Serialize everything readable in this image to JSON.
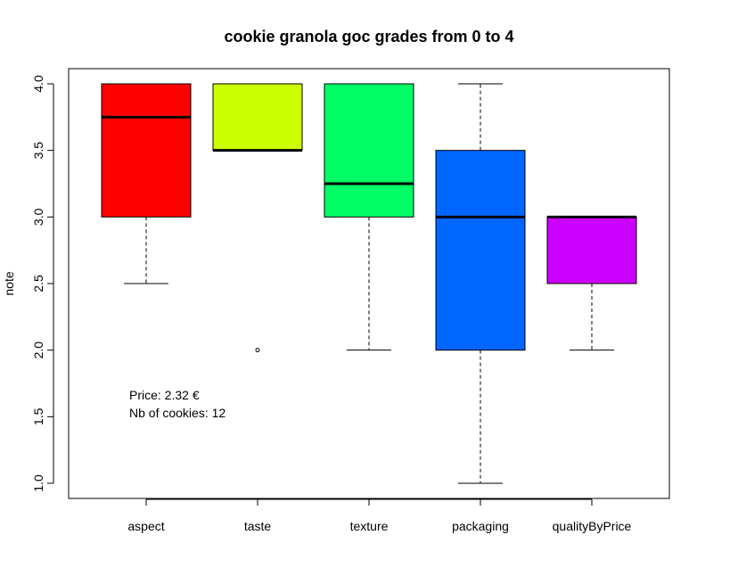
{
  "chart_data": {
    "type": "boxplot",
    "title": "cookie granola goc grades from 0 to 4",
    "xlabel": "",
    "ylabel": "note",
    "ylim": [
      1.0,
      4.0
    ],
    "y_ticks": [
      "1.0",
      "1.5",
      "2.0",
      "2.5",
      "3.0",
      "3.5",
      "4.0"
    ],
    "categories": [
      "aspect",
      "taste",
      "texture",
      "packaging",
      "qualityByPrice"
    ],
    "colors": [
      "#FF0000",
      "#CCFF00",
      "#00FF66",
      "#0066FF",
      "#CC00FF"
    ],
    "boxes": [
      {
        "name": "aspect",
        "whisker_low": 2.5,
        "q1": 3.0,
        "median": 3.75,
        "q3": 4.0,
        "whisker_high": 4.0,
        "outliers": []
      },
      {
        "name": "taste",
        "whisker_low": 3.5,
        "q1": 3.5,
        "median": 3.5,
        "q3": 4.0,
        "whisker_high": 4.0,
        "outliers": [
          2.0
        ]
      },
      {
        "name": "texture",
        "whisker_low": 2.0,
        "q1": 3.0,
        "median": 3.25,
        "q3": 4.0,
        "whisker_high": 4.0,
        "outliers": []
      },
      {
        "name": "packaging",
        "whisker_low": 1.0,
        "q1": 2.0,
        "median": 3.0,
        "q3": 3.5,
        "whisker_high": 4.0,
        "outliers": []
      },
      {
        "name": "qualityByPrice",
        "whisker_low": 2.0,
        "q1": 2.5,
        "median": 3.0,
        "q3": 3.0,
        "whisker_high": 3.0,
        "outliers": []
      }
    ],
    "annotations": {
      "price": "Price: 2.32 €",
      "count": "Nb of cookies: 12"
    },
    "grid": false,
    "legend": "none"
  }
}
